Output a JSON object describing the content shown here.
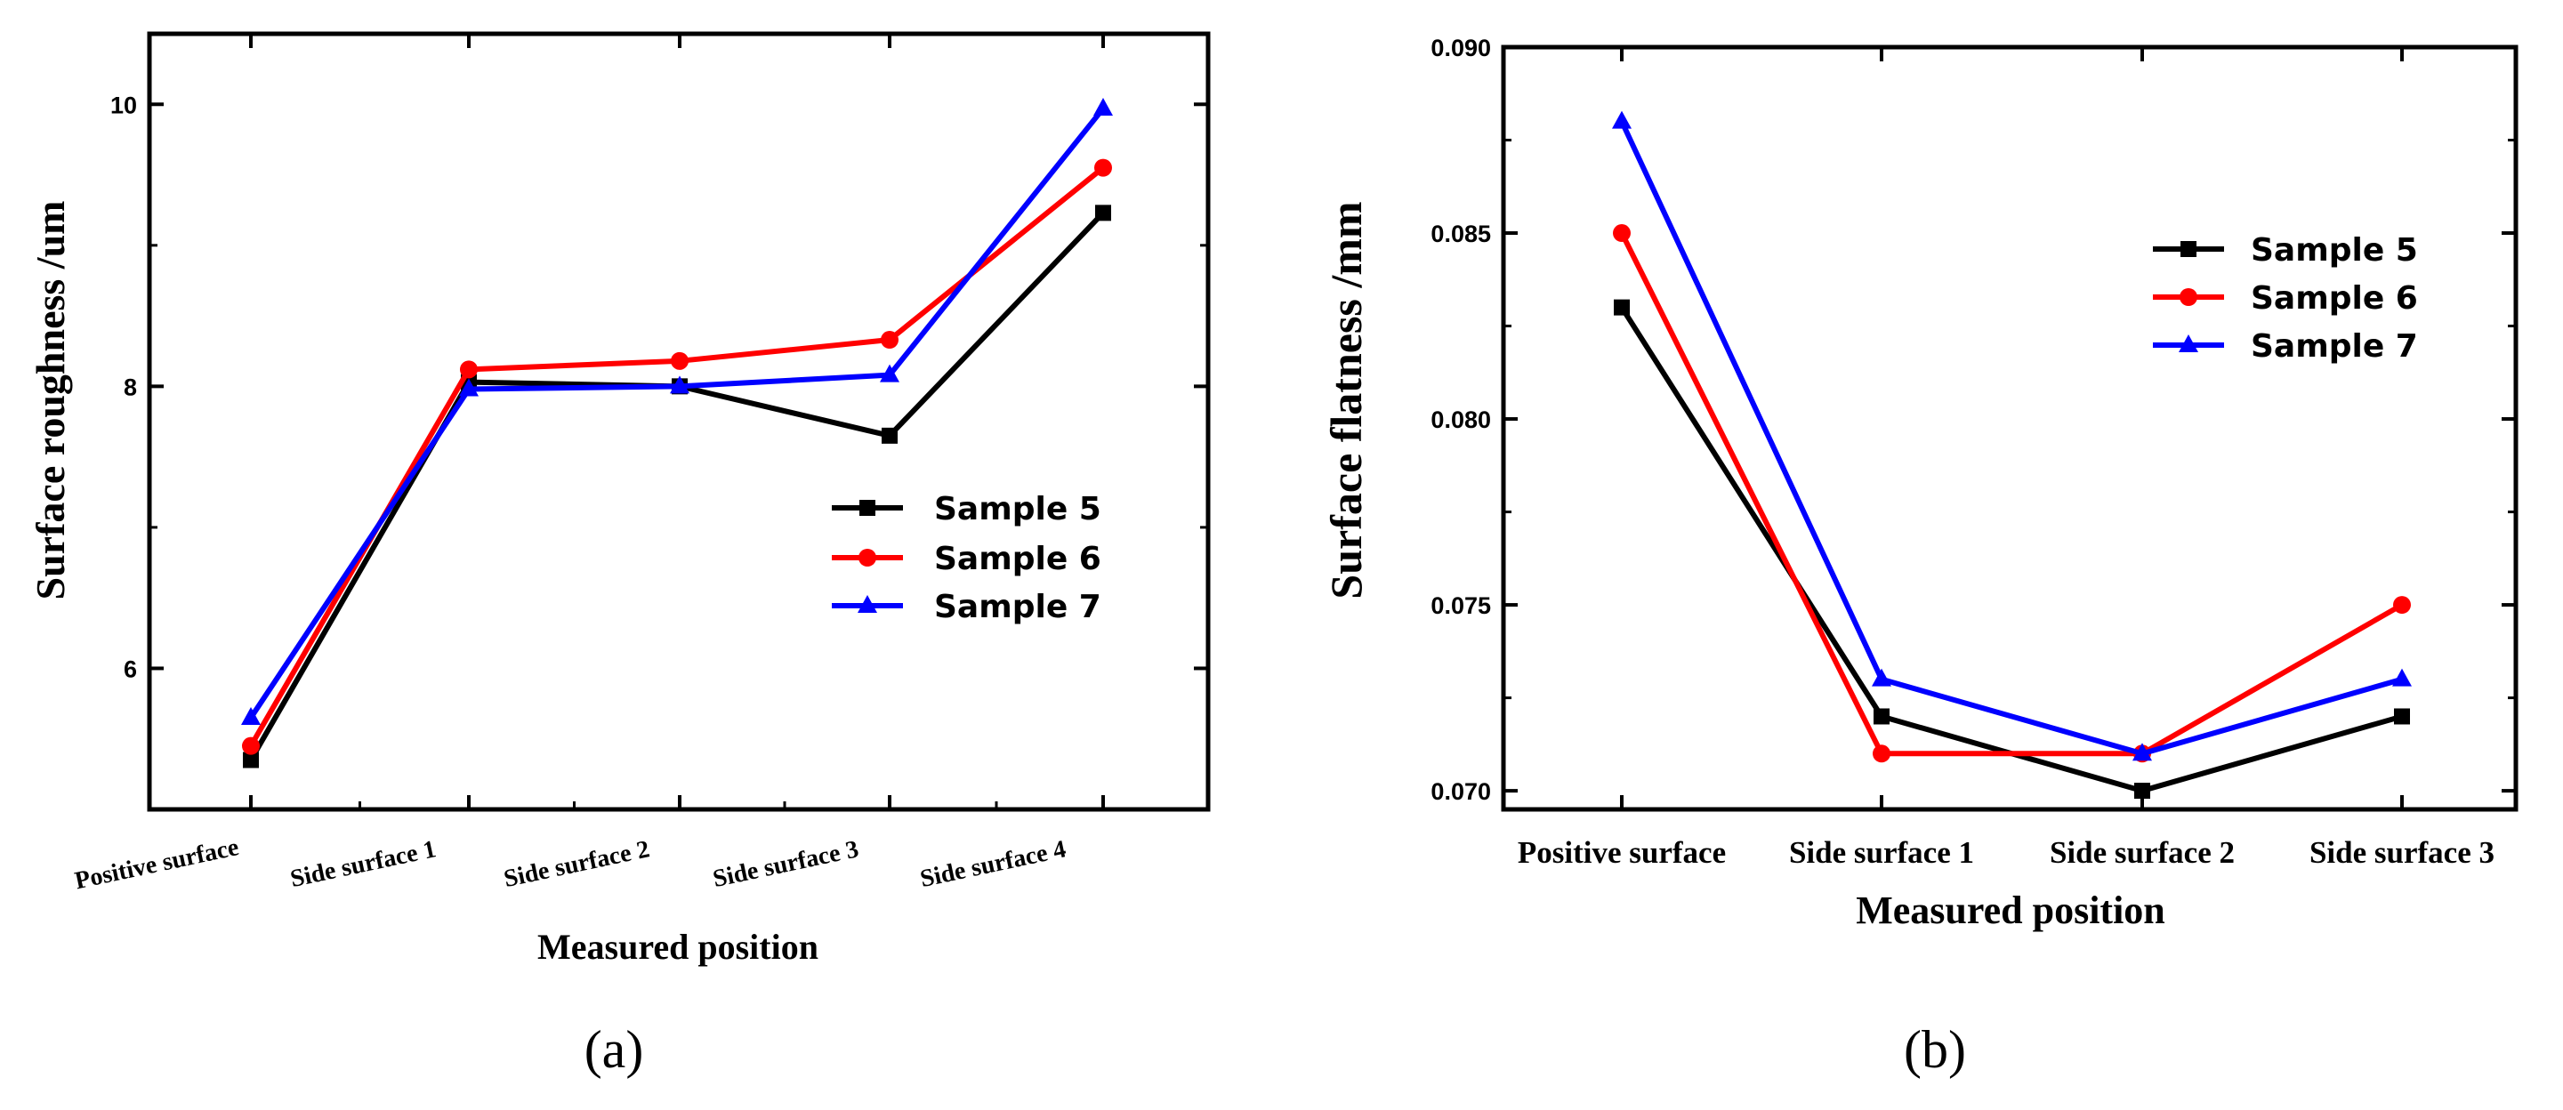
{
  "colors": {
    "Sample 5": "#000000",
    "Sample 6": "#ff0000",
    "Sample 7": "#0000ff"
  },
  "chart_data": [
    {
      "type": "line",
      "panel_label": "(a)",
      "categories": [
        "Positive surface",
        "Side surface 1",
        "Side surface 2",
        "Side surface 3",
        "Side surface 4"
      ],
      "series": [
        {
          "name": "Sample 5",
          "marker": "square",
          "values": [
            5.35,
            8.03,
            8.0,
            7.65,
            9.23
          ]
        },
        {
          "name": "Sample 6",
          "marker": "circle",
          "values": [
            5.45,
            8.12,
            8.18,
            8.33,
            9.55
          ]
        },
        {
          "name": "Sample 7",
          "marker": "triangle",
          "values": [
            5.65,
            7.98,
            8.0,
            8.08,
            9.97
          ]
        }
      ],
      "xlabel": "Measured position",
      "ylabel": "Surface roughness /um",
      "ylim": [
        5.0,
        10.5
      ],
      "yticks": [
        6,
        8,
        10
      ],
      "yticklabels": [
        "6",
        "8",
        "10"
      ],
      "legend": "center-right"
    },
    {
      "type": "line",
      "panel_label": "(b)",
      "categories": [
        "Positive surface",
        "Side surface 1",
        "Side surface 2",
        "Side surface 3"
      ],
      "series": [
        {
          "name": "Sample 5",
          "marker": "square",
          "values": [
            0.083,
            0.072,
            0.07,
            0.072
          ]
        },
        {
          "name": "Sample 6",
          "marker": "circle",
          "values": [
            0.085,
            0.071,
            0.071,
            0.075
          ]
        },
        {
          "name": "Sample 7",
          "marker": "triangle",
          "values": [
            0.088,
            0.073,
            0.071,
            0.073
          ]
        }
      ],
      "xlabel": "Measured position",
      "ylabel": "Surface flatness /mm",
      "ylim": [
        0.0695,
        0.09
      ],
      "yticks": [
        0.07,
        0.075,
        0.08,
        0.085,
        0.09
      ],
      "yticklabels": [
        "0.070",
        "0.075",
        "0.080",
        "0.085",
        "0.090"
      ],
      "legend": "top-right"
    }
  ]
}
